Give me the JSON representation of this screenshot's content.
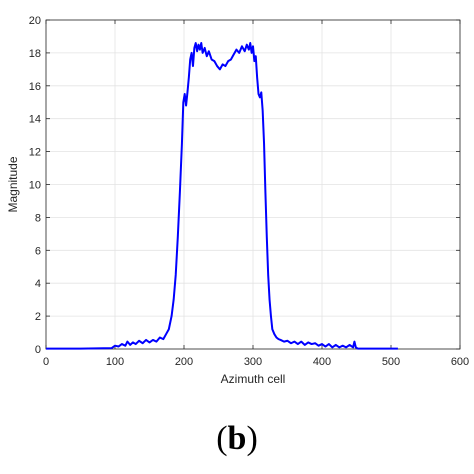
{
  "panel_label": {
    "open": "(",
    "letter": "b",
    "close": ")"
  },
  "chart_data": {
    "type": "line",
    "title": "",
    "xlabel": "Azimuth cell",
    "ylabel": "Magnitude",
    "xlim": [
      0,
      600
    ],
    "ylim": [
      0,
      20
    ],
    "xticks": [
      0,
      100,
      200,
      300,
      400,
      500,
      600
    ],
    "yticks": [
      0,
      2,
      4,
      6,
      8,
      10,
      12,
      14,
      16,
      18,
      20
    ],
    "grid": true,
    "line_color": "#0000ff",
    "series": [
      {
        "x": [
          0,
          50,
          95,
          100,
          105,
          110,
          115,
          118,
          122,
          126,
          130,
          135,
          140,
          145,
          150,
          155,
          160,
          165,
          170,
          174,
          178,
          182,
          185,
          188,
          191,
          194,
          197,
          199,
          201,
          203,
          205,
          207,
          209,
          211,
          213,
          215,
          217,
          219,
          221,
          223,
          225,
          227,
          230,
          233,
          236,
          240,
          244,
          248,
          252,
          256,
          260,
          264,
          268,
          272,
          276,
          280,
          284,
          288,
          291,
          294,
          296,
          298,
          300,
          302,
          304,
          306,
          308,
          310,
          312,
          314,
          316,
          318,
          320,
          322,
          324,
          326,
          328,
          331,
          334,
          337,
          340,
          345,
          350,
          355,
          360,
          365,
          370,
          375,
          380,
          385,
          390,
          395,
          400,
          405,
          410,
          415,
          420,
          425,
          430,
          435,
          440,
          445,
          447,
          449,
          452,
          460,
          500,
          510
        ],
        "y": [
          0.02,
          0.02,
          0.05,
          0.2,
          0.15,
          0.3,
          0.2,
          0.45,
          0.25,
          0.4,
          0.3,
          0.5,
          0.35,
          0.55,
          0.4,
          0.55,
          0.45,
          0.7,
          0.6,
          0.9,
          1.2,
          2.0,
          3.0,
          4.5,
          6.8,
          9.5,
          12.5,
          15.0,
          15.5,
          14.8,
          15.6,
          16.5,
          17.6,
          18.0,
          17.2,
          18.3,
          18.6,
          18.1,
          18.5,
          18.2,
          18.6,
          18.0,
          18.3,
          17.8,
          18.1,
          17.6,
          17.5,
          17.2,
          17.0,
          17.3,
          17.2,
          17.5,
          17.6,
          17.9,
          18.2,
          18.0,
          18.4,
          18.1,
          18.5,
          18.2,
          18.6,
          18.0,
          18.4,
          17.5,
          17.8,
          16.5,
          15.5,
          15.3,
          15.6,
          14.5,
          12.5,
          9.5,
          6.8,
          4.5,
          3.0,
          2.0,
          1.2,
          0.9,
          0.7,
          0.6,
          0.55,
          0.45,
          0.5,
          0.35,
          0.45,
          0.3,
          0.45,
          0.25,
          0.4,
          0.3,
          0.35,
          0.2,
          0.3,
          0.15,
          0.3,
          0.1,
          0.25,
          0.1,
          0.2,
          0.1,
          0.25,
          0.1,
          0.45,
          0.1,
          0.02,
          0.02,
          0.02,
          0.02
        ]
      }
    ]
  }
}
